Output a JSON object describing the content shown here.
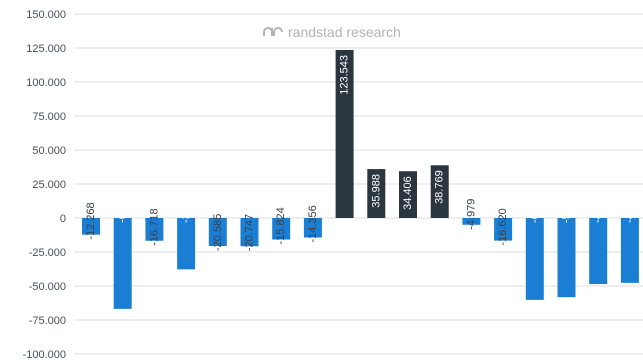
{
  "watermark": "randstad research",
  "chart_data": {
    "type": "bar",
    "title": "",
    "xlabel": "",
    "ylabel": "",
    "ylim": [
      -100000,
      150000
    ],
    "yticks": [
      150000,
      125000,
      100000,
      75000,
      50000,
      25000,
      0,
      -25000,
      -50000,
      -75000,
      -100000
    ],
    "ytick_labels": [
      "150.000",
      "125.000",
      "100.000",
      "75.000",
      "50.000",
      "25.000",
      "0",
      "-25.000",
      "-50.000",
      "-75.000",
      "-100.000"
    ],
    "grid": true,
    "legend": "none",
    "values": [
      -12268,
      -66805,
      -16718,
      -37754,
      -20585,
      -20747,
      -15824,
      -14356,
      123543,
      35988,
      34406,
      38769,
      -4979,
      -16620,
      -60214,
      -58216,
      -48559,
      -47697
    ],
    "data_labels": [
      "-12.268",
      "-66.805",
      "-16.718",
      "-37.754",
      "-20.585",
      "-20.747",
      "-15.824",
      "-14.356",
      "123.543",
      "35.988",
      "34.406",
      "38.769",
      "-4.979",
      "-16.620",
      "-60.214",
      "-58.216",
      "-48.559",
      "-47.697"
    ],
    "bar_colors": [
      "#1a7fd4",
      "#1a7fd4",
      "#1a7fd4",
      "#1a7fd4",
      "#1a7fd4",
      "#1a7fd4",
      "#1a7fd4",
      "#1a7fd4",
      "#2c3640",
      "#2c3640",
      "#2c3640",
      "#2c3640",
      "#1a7fd4",
      "#1a7fd4",
      "#1a7fd4",
      "#1a7fd4",
      "#1a7fd4",
      "#1a7fd4"
    ],
    "colors": {
      "negative_bar": "#1a7fd4",
      "positive_bar": "#2c3640",
      "gridline": "#dcdcdc",
      "axis_text": "#4a4f5a"
    }
  }
}
